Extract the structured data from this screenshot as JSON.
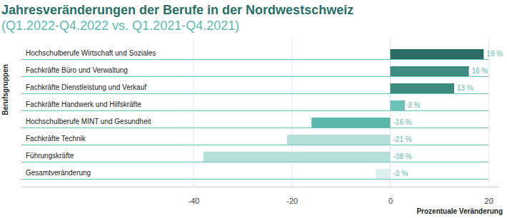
{
  "chart_data": {
    "type": "bar",
    "orientation": "horizontal",
    "title": "Jahresveränderungen der Berufe in der Nordwestschweiz",
    "subtitle": "(Q1.2022-Q4.2022 vs. Q1.2021-Q4.2021)",
    "xlabel": "Prozentuale Veränderung",
    "ylabel": "Berufsgruppen",
    "categories": [
      "Hochschulberufe Wirtschaft und Soziales",
      "Fachkräfte Büro und Verwaltung",
      "Fachkräfte Dienstleistung und Verkauf",
      "Fachkräfte Handwerk und Hilfskräfte",
      "Hochschulberufe MINT und Gesundheit",
      "Fachkräfte Technik",
      "Führungskräfte",
      "Gesamtveränderung"
    ],
    "values": [
      19,
      16,
      13,
      3,
      -16,
      -21,
      -38,
      -3
    ],
    "value_labels": [
      "19 %",
      "16 %",
      "13 %",
      "3 %",
      "-16 %",
      "-21 %",
      "-38 %",
      "-3 %"
    ],
    "colors": [
      "#2a6b63",
      "#3d8c81",
      "#3d8a7f",
      "#6cc2b6",
      "#5ab5aa",
      "#b7dfda",
      "#b7dfda",
      "#dcefec"
    ],
    "xlim": [
      -75,
      22
    ],
    "xticks": [
      -40,
      -20,
      0,
      20
    ],
    "grid": true,
    "data_labels": true
  }
}
